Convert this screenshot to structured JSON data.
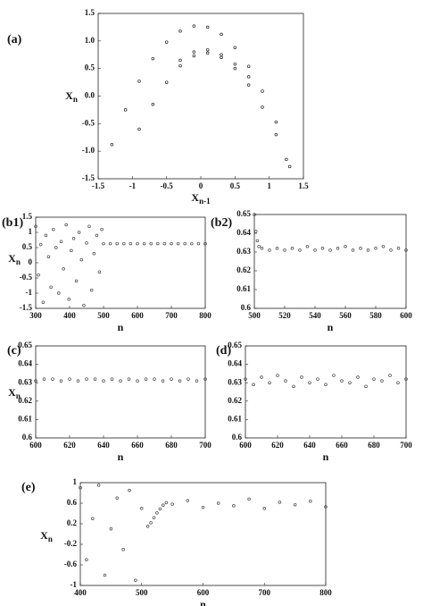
{
  "chart_data": [
    {
      "type": "scatter",
      "label": "(a)",
      "xlabel": "X",
      "xlabel_sub": "n-1",
      "ylabel": "X",
      "ylabel_sub": "n",
      "color": "#222",
      "xlim": [
        -1.5,
        1.5
      ],
      "xticks": [
        -1.5,
        -1,
        -0.5,
        0,
        0.5,
        1,
        1.5
      ],
      "ylim": [
        -1.5,
        1.5
      ],
      "yticks": [
        -1.5,
        {
          "value": -1,
          "label": "-1.0"
        },
        -0.5,
        {
          "value": 0,
          "label": "0.0"
        },
        0.5,
        {
          "value": 1,
          "label": "1.0"
        },
        1.5
      ],
      "x": [
        -1.3,
        -1.1,
        -0.9,
        -0.7,
        -0.5,
        -0.3,
        -0.1,
        0.1,
        0.3,
        0.5,
        0.7,
        0.9,
        1.1,
        1.3,
        -0.9,
        -0.7,
        -0.5,
        -0.3,
        -0.1,
        0.1,
        0.3,
        0.5,
        0.7,
        0.9,
        1.1,
        1.25,
        -0.3,
        -0.1,
        0.1,
        0.3,
        0.5,
        0.7
      ],
      "y": [
        -0.88,
        -0.25,
        0.27,
        0.68,
        0.98,
        1.18,
        1.27,
        1.25,
        1.12,
        0.88,
        0.54,
        0.09,
        -0.47,
        -1.28,
        -0.6,
        -0.15,
        0.25,
        0.55,
        0.73,
        0.78,
        0.7,
        0.5,
        0.2,
        -0.2,
        -0.7,
        -1.15,
        0.65,
        0.8,
        0.84,
        0.75,
        0.58,
        0.35
      ]
    },
    {
      "type": "scatter",
      "label": "(b1)",
      "xlabel": "n",
      "ylabel": "X",
      "ylabel_sub": "n",
      "color": "#444",
      "xlim": [
        300,
        800
      ],
      "xticks": [
        300,
        400,
        500,
        600,
        700,
        800
      ],
      "ylim": [
        -1.5,
        1.5
      ],
      "yticks": [
        -1.5,
        -1,
        -0.5,
        0,
        0.5,
        1,
        1.5
      ],
      "x": [
        300,
        308,
        315,
        322,
        330,
        338,
        345,
        352,
        360,
        368,
        375,
        382,
        390,
        398,
        405,
        412,
        420,
        428,
        435,
        442,
        450,
        458,
        465,
        472,
        480,
        488,
        495,
        500,
        520,
        540,
        560,
        580,
        600,
        620,
        640,
        660,
        680,
        700,
        720,
        740,
        760,
        780,
        800
      ],
      "y": [
        1.2,
        -0.4,
        0.6,
        -1.3,
        0.9,
        0.2,
        -0.8,
        1.1,
        0.5,
        -1.0,
        0.7,
        -0.2,
        1.25,
        -1.2,
        0.4,
        0.8,
        -0.6,
        1.0,
        0.1,
        -1.4,
        0.65,
        1.2,
        -0.9,
        0.3,
        0.9,
        -0.3,
        1.1,
        0.63,
        0.63,
        0.63,
        0.63,
        0.63,
        0.63,
        0.63,
        0.63,
        0.63,
        0.63,
        0.63,
        0.63,
        0.63,
        0.63,
        0.63,
        0.63
      ]
    },
    {
      "type": "scatter",
      "label": "(b2)",
      "xlabel": "n",
      "color": "#444",
      "xlim": [
        500,
        600
      ],
      "xticks": [
        500,
        520,
        540,
        560,
        580,
        600
      ],
      "ylim": [
        0.6,
        0.65
      ],
      "yticks": [
        0.6,
        0.61,
        0.62,
        0.63,
        0.64,
        0.65
      ],
      "x": [
        500,
        501,
        502,
        503,
        505,
        510,
        515,
        520,
        525,
        530,
        535,
        540,
        545,
        550,
        555,
        560,
        565,
        570,
        575,
        580,
        585,
        590,
        595,
        600
      ],
      "y": [
        0.65,
        0.641,
        0.636,
        0.633,
        0.632,
        0.631,
        0.632,
        0.631,
        0.632,
        0.631,
        0.633,
        0.631,
        0.632,
        0.631,
        0.632,
        0.633,
        0.631,
        0.632,
        0.631,
        0.632,
        0.633,
        0.631,
        0.632,
        0.631
      ]
    },
    {
      "type": "scatter",
      "label": "(c)",
      "xlabel": "n",
      "ylabel": "X",
      "ylabel_sub": "n",
      "color": "#444",
      "xlim": [
        600,
        700
      ],
      "xticks": [
        600,
        620,
        640,
        660,
        680,
        700
      ],
      "ylim": [
        0.6,
        0.65
      ],
      "yticks": [
        0.6,
        0.61,
        0.62,
        0.63,
        0.64,
        0.65
      ],
      "x": [
        600,
        605,
        610,
        615,
        620,
        625,
        630,
        635,
        640,
        645,
        650,
        655,
        660,
        665,
        670,
        675,
        680,
        685,
        690,
        695,
        700
      ],
      "y": [
        0.631,
        0.632,
        0.632,
        0.631,
        0.632,
        0.631,
        0.632,
        0.632,
        0.631,
        0.632,
        0.631,
        0.632,
        0.631,
        0.632,
        0.632,
        0.631,
        0.632,
        0.631,
        0.632,
        0.631,
        0.632
      ]
    },
    {
      "type": "scatter",
      "label": "(d)",
      "xlabel": "n",
      "color": "#444",
      "xlim": [
        600,
        700
      ],
      "xticks": [
        600,
        620,
        640,
        660,
        680,
        700
      ],
      "ylim": [
        0.6,
        0.65
      ],
      "yticks": [
        0.6,
        0.61,
        0.62,
        0.63,
        0.64,
        0.65
      ],
      "x": [
        600,
        605,
        610,
        615,
        620,
        625,
        630,
        635,
        640,
        645,
        650,
        655,
        660,
        665,
        670,
        675,
        680,
        685,
        690,
        695,
        700
      ],
      "y": [
        0.632,
        0.629,
        0.633,
        0.63,
        0.634,
        0.631,
        0.628,
        0.633,
        0.63,
        0.632,
        0.629,
        0.634,
        0.631,
        0.63,
        0.633,
        0.628,
        0.632,
        0.631,
        0.634,
        0.63,
        0.632
      ]
    },
    {
      "type": "scatter",
      "label": "(e)",
      "xlabel": "n",
      "ylabel": "X",
      "ylabel_sub": "n",
      "color": "#444",
      "xlim": [
        400,
        800
      ],
      "xticks": [
        400,
        500,
        600,
        700,
        800
      ],
      "ylim": [
        -1,
        1
      ],
      "yticks": [
        -1,
        -0.6,
        -0.2,
        0.2,
        0.6,
        1
      ],
      "x": [
        400,
        410,
        420,
        430,
        440,
        450,
        460,
        470,
        480,
        490,
        500,
        510,
        515,
        520,
        525,
        530,
        535,
        540,
        550,
        575,
        600,
        625,
        650,
        675,
        700,
        725,
        750,
        775,
        800
      ],
      "y": [
        0.9,
        -0.5,
        0.3,
        0.95,
        -0.8,
        0.1,
        0.7,
        -0.3,
        0.85,
        -0.9,
        0.5,
        0.15,
        0.22,
        0.32,
        0.41,
        0.49,
        0.56,
        0.61,
        0.58,
        0.65,
        0.52,
        0.6,
        0.55,
        0.68,
        0.5,
        0.62,
        0.57,
        0.64,
        0.53
      ]
    }
  ]
}
